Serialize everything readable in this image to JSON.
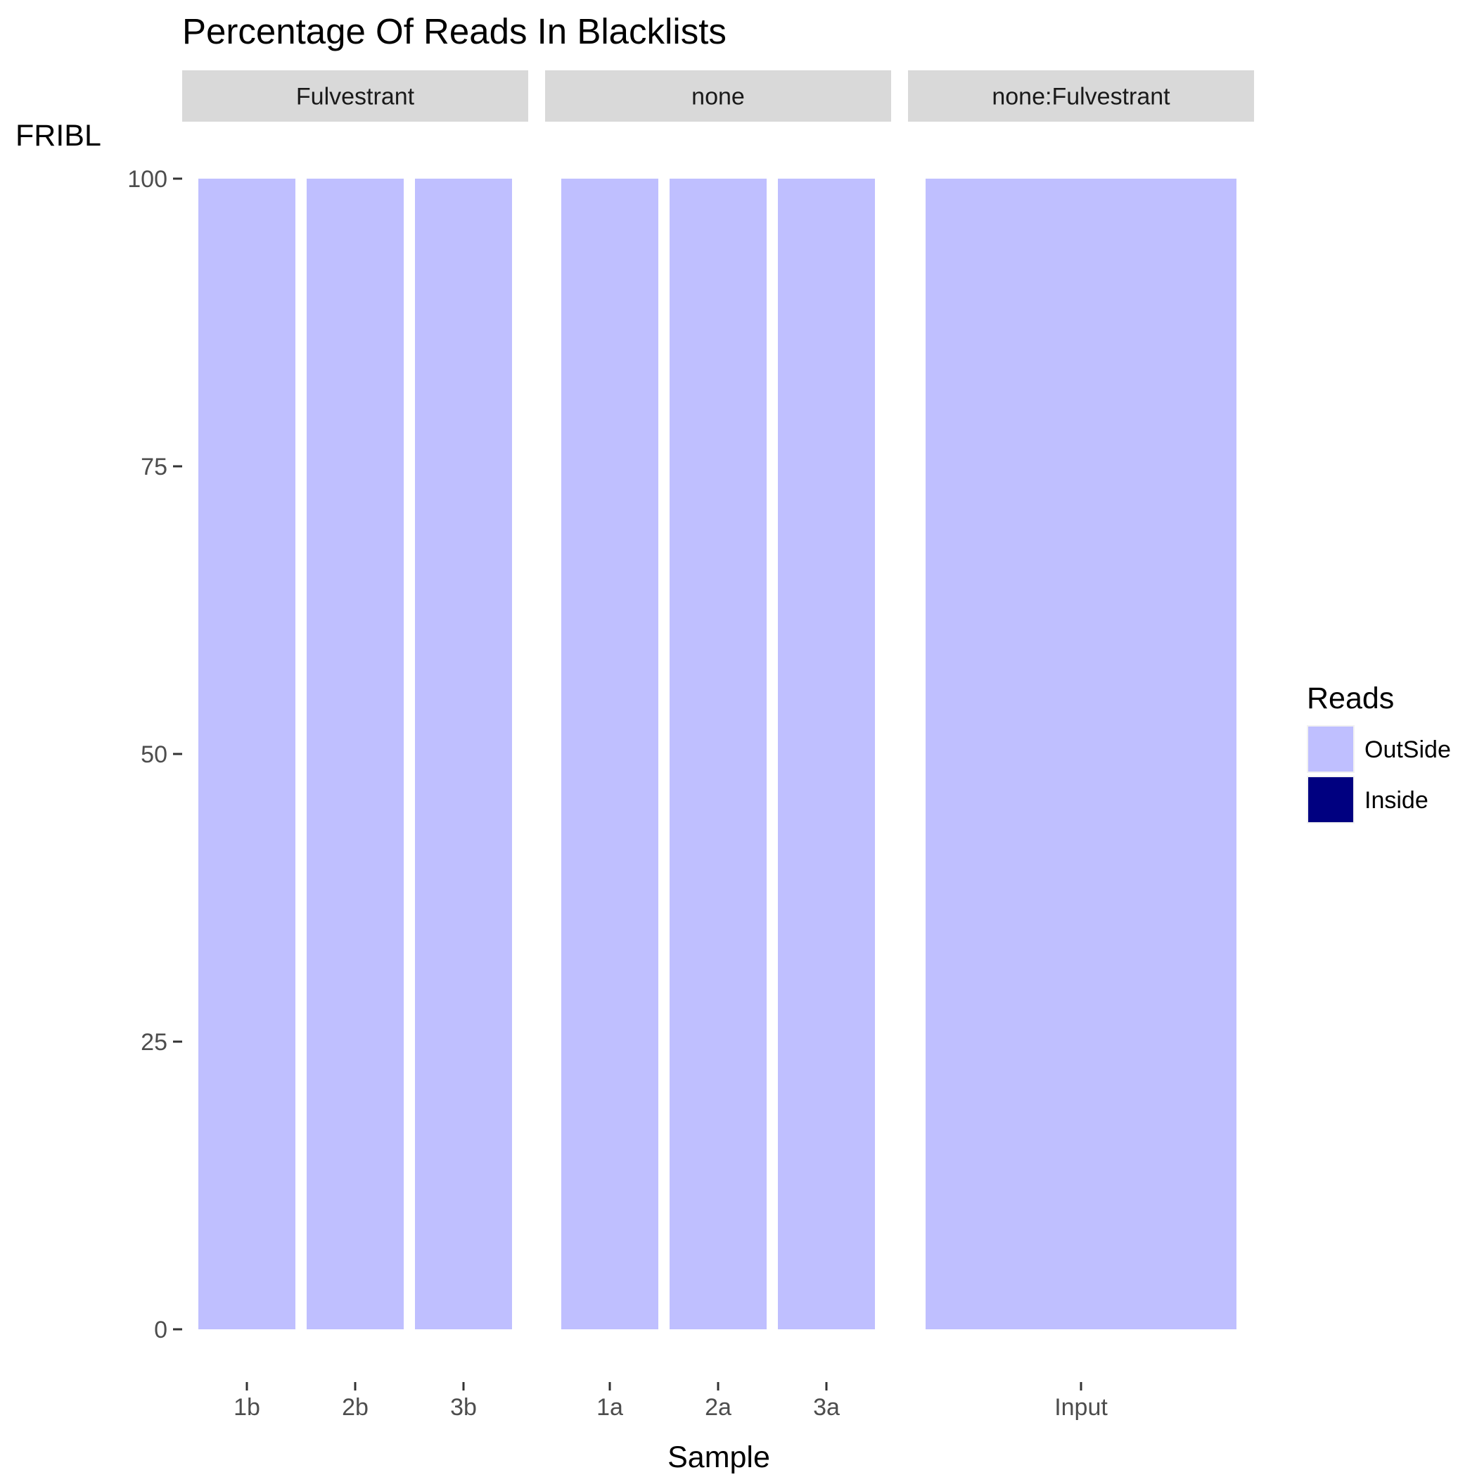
{
  "chart_data": {
    "type": "bar",
    "stacked": true,
    "title": "Percentage Of Reads In Blacklists",
    "xlabel": "Sample",
    "ylabel": "FRIBL",
    "ylim": [
      0,
      100
    ],
    "yticks": [
      "0",
      "25",
      "50",
      "75",
      "100"
    ],
    "grid": false,
    "facets": [
      {
        "label": "Fulvestrant",
        "categories": [
          "1b",
          "2b",
          "3b"
        ]
      },
      {
        "label": "none",
        "categories": [
          "1a",
          "2a",
          "3a"
        ]
      },
      {
        "label": "none:Fulvestrant",
        "categories": [
          "Input"
        ]
      }
    ],
    "series": [
      {
        "name": "OutSide",
        "color": "#bfbfff",
        "values": [
          100,
          100,
          100,
          100,
          100,
          100,
          100
        ]
      },
      {
        "name": "Inside",
        "color": "#000080",
        "values": [
          0,
          0,
          0,
          0,
          0,
          0,
          0
        ]
      }
    ],
    "legend": {
      "title": "Reads",
      "position": "right"
    }
  }
}
